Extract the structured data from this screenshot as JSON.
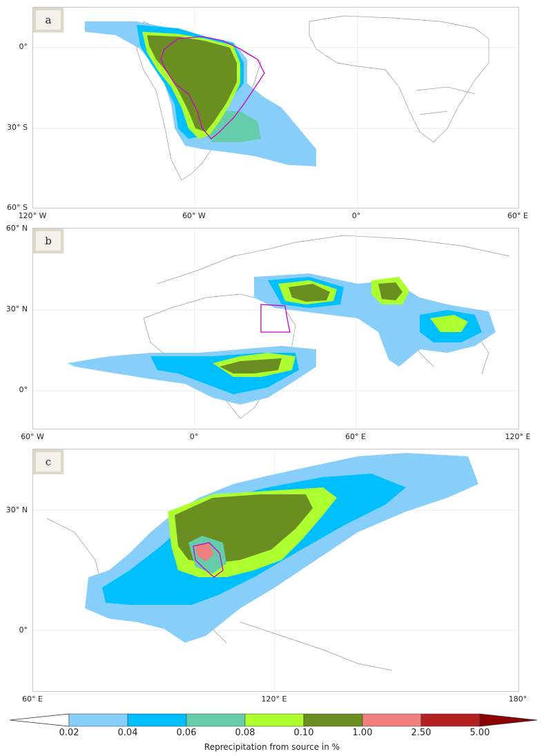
{
  "panels": [
    {
      "tag": "a",
      "x_ticks": [
        "120° W",
        "60° W",
        "0°",
        "60° E"
      ],
      "y_ticks": [
        "0°",
        "30° S",
        "60° S"
      ]
    },
    {
      "tag": "b",
      "x_ticks": [
        "60° W",
        "0°",
        "60° E",
        "120° E"
      ],
      "y_ticks": [
        "60° N",
        "30° N",
        "0°"
      ]
    },
    {
      "tag": "c",
      "x_ticks": [
        "60° E",
        "120° E",
        "180°"
      ],
      "y_ticks": [
        "30° N",
        "0°"
      ]
    }
  ],
  "colorbar": {
    "label": "Reprecipitation from source in %",
    "ticks": [
      "0.02",
      "0.04",
      "0.06",
      "0.08",
      "0.10",
      "1.00",
      "2.50",
      "5.00"
    ],
    "colors": [
      "#87cefa",
      "#00bfff",
      "#66cdaa",
      "#adff2f",
      "#6b8e23",
      "#f08080",
      "#b22222",
      "#8b0000"
    ]
  },
  "styles": {
    "source_outline": "#cc00cc",
    "coast": "#888888"
  }
}
